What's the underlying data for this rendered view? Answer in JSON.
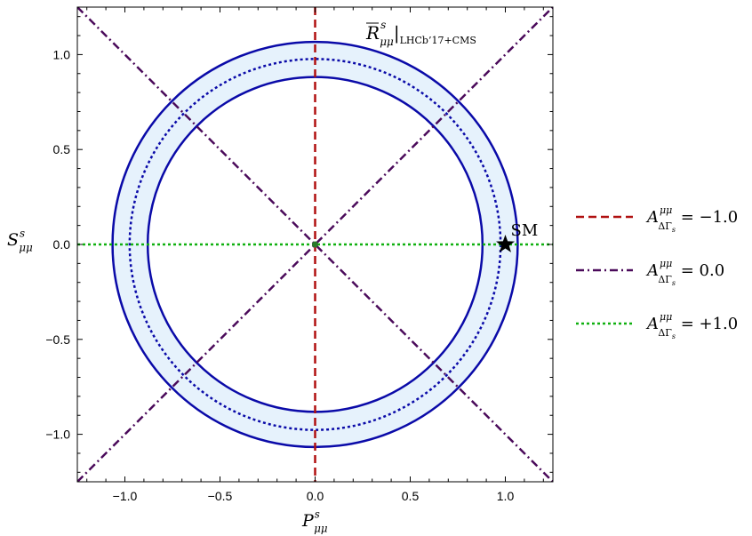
{
  "chart_data": {
    "type": "line",
    "xlabel": {
      "base": "P",
      "sup": "s",
      "sub": "μμ"
    },
    "ylabel": {
      "base": "S",
      "sup": "s",
      "sub": "μμ"
    },
    "xlim": [
      -1.25,
      1.25
    ],
    "ylim": [
      -1.25,
      1.25
    ],
    "xticks": [
      -1.0,
      -0.5,
      0.0,
      0.5,
      1.0
    ],
    "yticks": [
      -1.0,
      -0.5,
      0.0,
      0.5,
      1.0
    ],
    "xtick_labels": [
      "−1.0",
      "−0.5",
      "0.0",
      "0.5",
      "1.0"
    ],
    "ytick_labels": [
      "−1.0",
      "−0.5",
      "0.0",
      "0.5",
      "1.0"
    ],
    "band": {
      "label": {
        "base": "R",
        "sup": "s",
        "sub": "μμ",
        "subscript_text": "LHCb’17+CMS"
      },
      "inner_radius": 0.88,
      "central_radius": 0.975,
      "outer_radius": 1.065,
      "fill_color": "#e6f2fc",
      "edge_color": "#0a0aa8"
    },
    "series": [
      {
        "name": "= −1.0",
        "kind": "vertical",
        "x": 0.0,
        "color": "#b01010",
        "dash": "dashed"
      },
      {
        "name": "= 0.0",
        "kind": "diagonals",
        "slopes": [
          1,
          -1
        ],
        "color": "#4a0a5a",
        "dash": "dashdot"
      },
      {
        "name": "= +1.0",
        "kind": "horizontal",
        "y": 0.0,
        "color": "#10b010",
        "dash": "dotted"
      }
    ],
    "legend_symbol": {
      "base": "A",
      "sup": "μμ",
      "sub": "ΔΓ",
      "subsub": "s"
    },
    "legend_position": "right",
    "points": [
      {
        "label": "SM",
        "x": 1.0,
        "y": 0.0,
        "marker": "star",
        "color": "#000000"
      },
      {
        "label": "",
        "x": 0.0,
        "y": 0.0,
        "marker": "dot",
        "color": "#2a7a2a"
      }
    ],
    "grid": false
  }
}
